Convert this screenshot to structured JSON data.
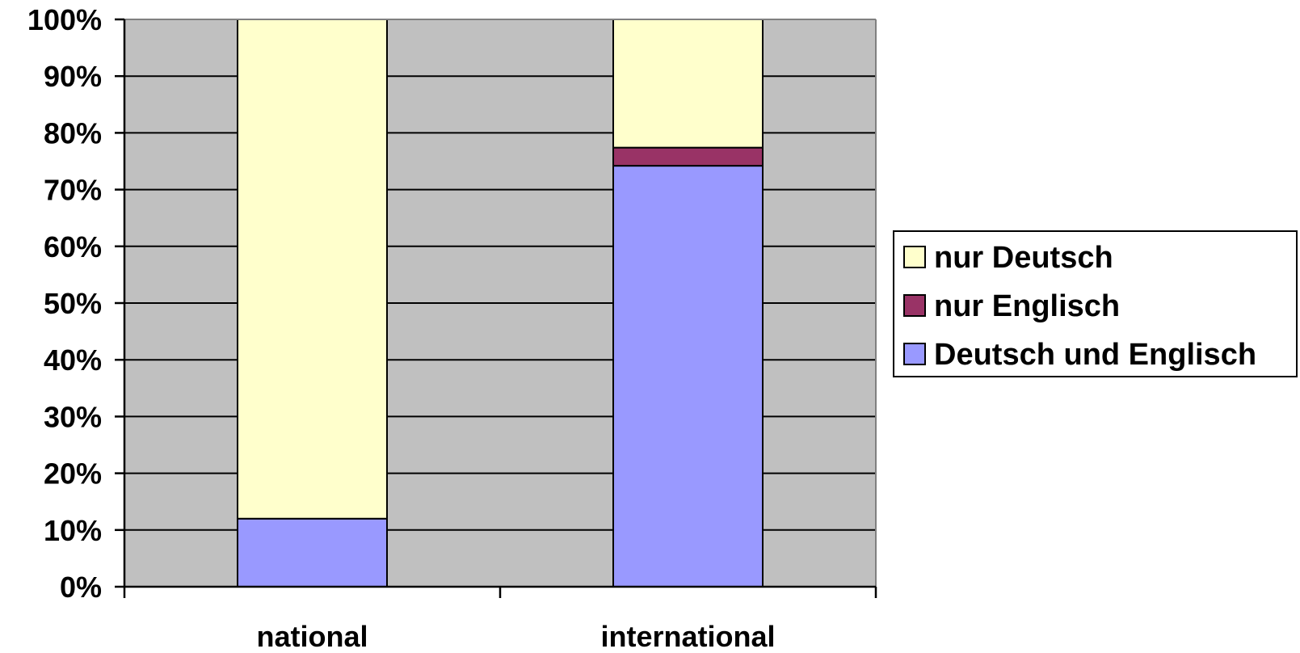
{
  "chart_data": {
    "type": "bar",
    "stacked": true,
    "percent": true,
    "categories": [
      "national",
      "international"
    ],
    "series": [
      {
        "name": "Deutsch und Englisch",
        "values": [
          12,
          74.2
        ],
        "color": "#9999ff"
      },
      {
        "name": "nur Englisch",
        "values": [
          0,
          3.2
        ],
        "color": "#993366"
      },
      {
        "name": "nur Deutsch",
        "values": [
          88,
          22.6
        ],
        "color": "#ffffcc"
      }
    ],
    "legend_order": [
      "nur Deutsch",
      "nur Englisch",
      "Deutsch und Englisch"
    ],
    "y_ticks": [
      "0%",
      "10%",
      "20%",
      "30%",
      "40%",
      "50%",
      "60%",
      "70%",
      "80%",
      "90%",
      "100%"
    ],
    "ylim": [
      0,
      100
    ],
    "grid": true,
    "legend_position": "right",
    "plot_background": "#c0c0c0",
    "title": "",
    "xlabel": "",
    "ylabel": ""
  }
}
